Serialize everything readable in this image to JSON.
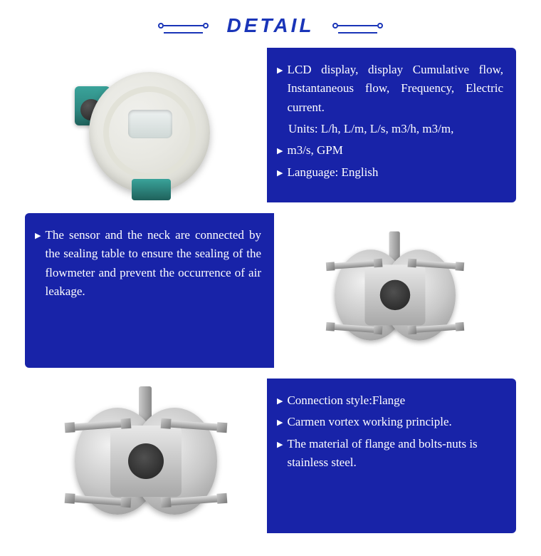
{
  "header_title": "DETAIL",
  "accent_color": "#1a35b8",
  "panel_bg_color": "#1823a8",
  "panel_text_color": "#ffffff",
  "panels": [
    {
      "image_side": "left",
      "image_kind": "lcd-display-head",
      "bullets": [
        {
          "text": "LCD display, display Cumulative flow, Instantaneous flow, Frequency, Electric current.",
          "justified": true
        },
        {
          "text": "Units: L/h, L/m, L/s, m3/h, m3/m,",
          "no_bullet": true,
          "indent": true
        },
        {
          "text": "m3/s, GPM"
        },
        {
          "text": "Language: English"
        }
      ]
    },
    {
      "image_side": "right",
      "image_kind": "flange-sensor-small",
      "bullets": [
        {
          "text": "The sensor and the neck are connected by the sealing table to ensure the sealing of the flowmeter and prevent the occurrence of air leakage.",
          "justified": true
        }
      ]
    },
    {
      "image_side": "left",
      "image_kind": "flange-sensor-large",
      "bullets": [
        {
          "text": "Connection style:Flange"
        },
        {
          "text": "Carmen vortex working principle."
        },
        {
          "text": "The material of flange and bolts-nuts is stainless steel."
        }
      ]
    }
  ]
}
